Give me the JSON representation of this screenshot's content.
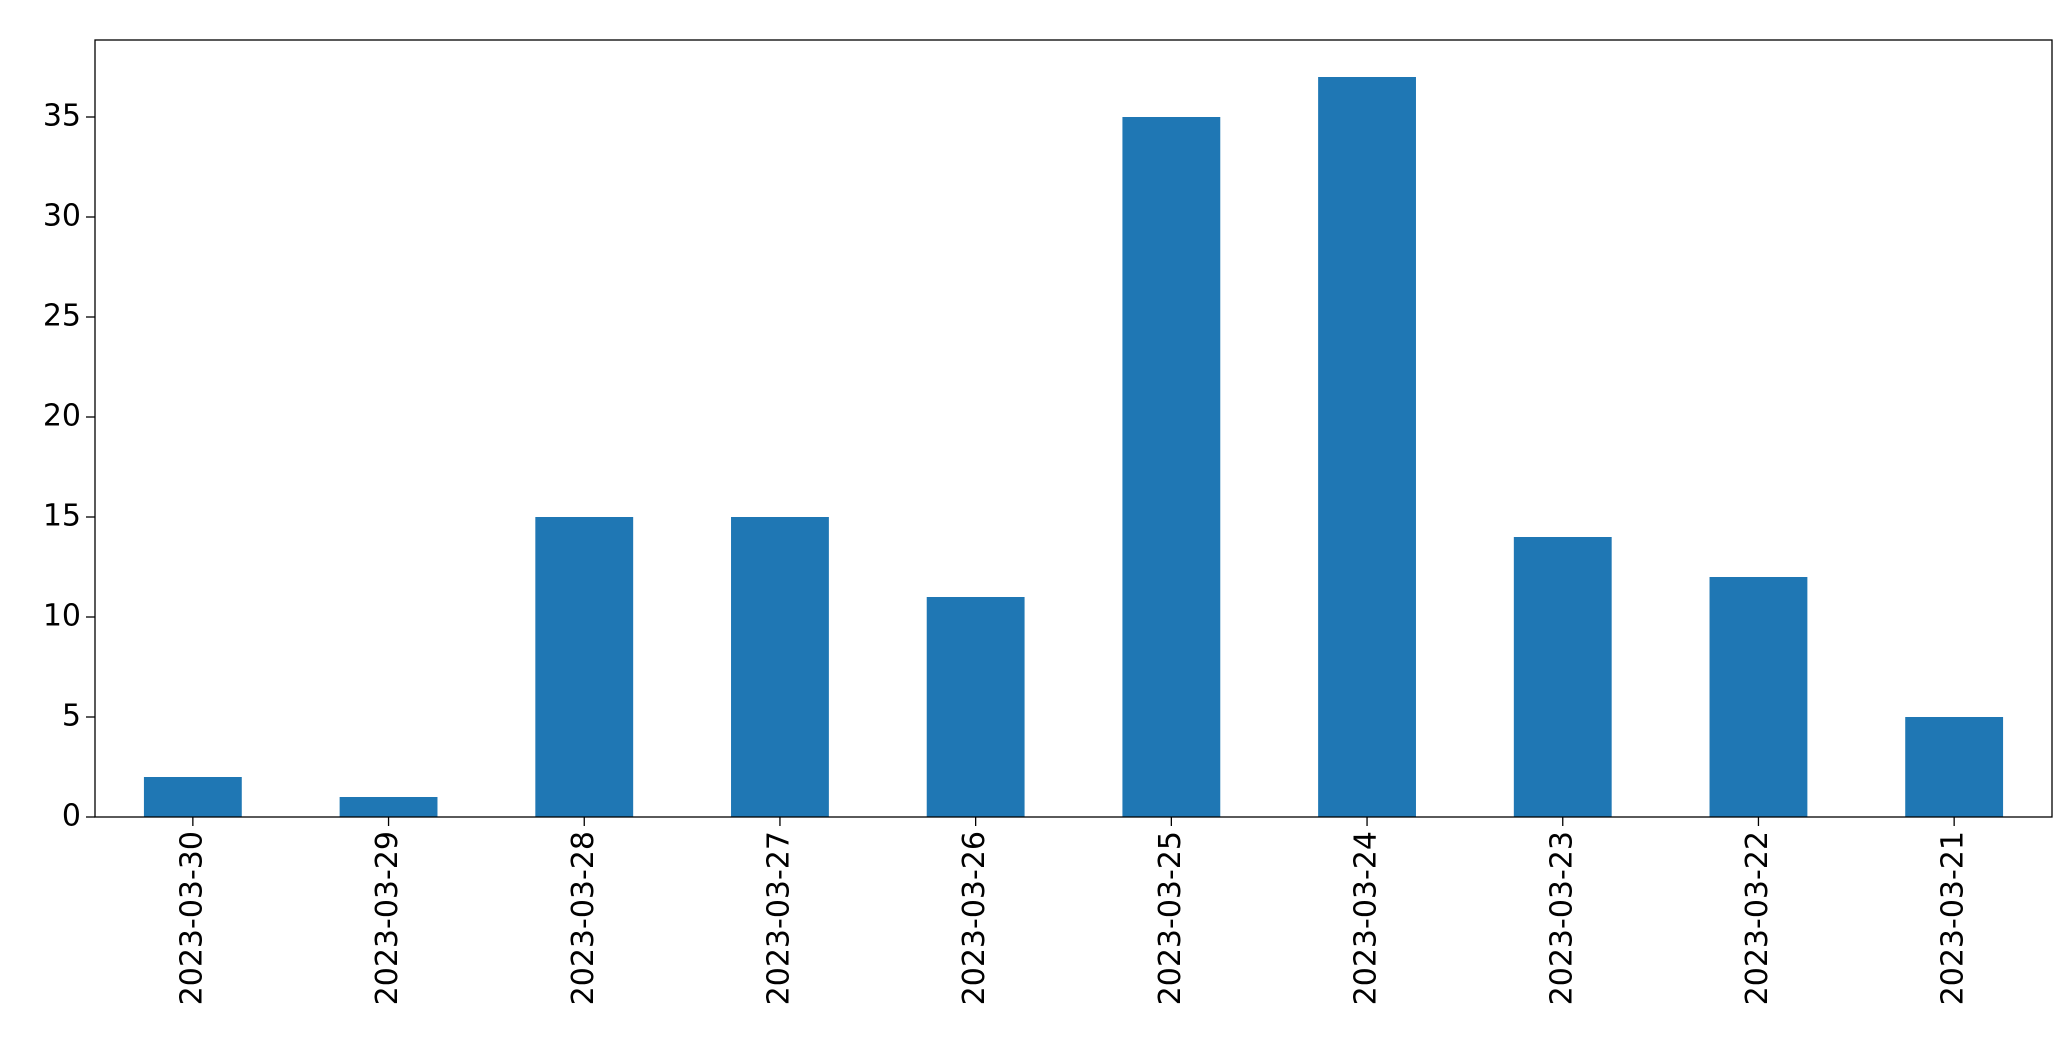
{
  "chart_data": {
    "type": "bar",
    "categories": [
      "2023-03-30",
      "2023-03-29",
      "2023-03-28",
      "2023-03-27",
      "2023-03-26",
      "2023-03-25",
      "2023-03-24",
      "2023-03-23",
      "2023-03-22",
      "2023-03-21"
    ],
    "values": [
      2,
      1,
      15,
      15,
      11,
      35,
      37,
      14,
      12,
      5
    ],
    "color": "#1f77b4",
    "ylim": [
      0,
      38.85
    ],
    "yticks": [
      0,
      5,
      10,
      15,
      20,
      25,
      30,
      35
    ],
    "grid": false
  }
}
